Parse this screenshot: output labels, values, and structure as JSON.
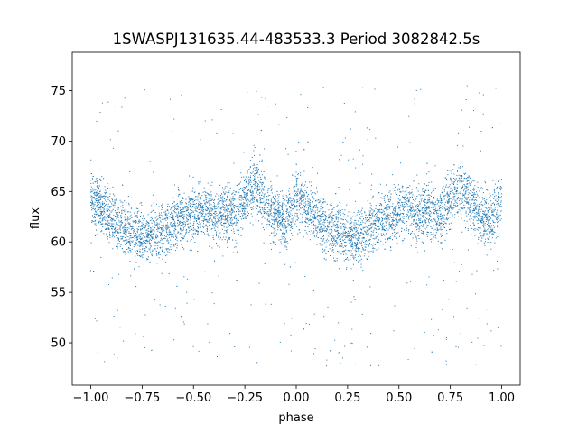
{
  "chart_data": {
    "type": "scatter",
    "title": "1SWASPJ131635.44-483533.3 Period 3082842.5s",
    "xlabel": "phase",
    "ylabel": "flux",
    "xlim": [
      -1.09,
      1.09
    ],
    "ylim": [
      45.8,
      78.8
    ],
    "xticks": [
      -1.0,
      -0.75,
      -0.5,
      -0.25,
      0.0,
      0.25,
      0.5,
      0.75,
      1.0
    ],
    "xtick_labels": [
      "−1.00",
      "−0.75",
      "−0.50",
      "−0.25",
      "0.00",
      "0.25",
      "0.50",
      "0.75",
      "1.00"
    ],
    "yticks": [
      50,
      55,
      60,
      65,
      70,
      75
    ],
    "ytick_labels": [
      "50",
      "55",
      "60",
      "65",
      "70",
      "75"
    ],
    "grid": false,
    "legend": "none",
    "marker_color": "#1f77b4",
    "series": [
      {
        "phase_profile": {
          "phase": [
            0.0,
            0.05,
            0.1,
            0.15,
            0.2,
            0.25,
            0.3,
            0.35,
            0.4,
            0.45,
            0.5,
            0.55,
            0.6,
            0.65,
            0.7,
            0.75,
            0.8,
            0.85,
            0.9,
            0.95,
            1.0
          ],
          "flux": [
            64.5,
            63.5,
            62.5,
            61.5,
            61.0,
            60.5,
            60.8,
            61.0,
            62.0,
            62.5,
            63.0,
            63.5,
            62.5,
            63.0,
            62.5,
            64.5,
            65.5,
            64.0,
            62.5,
            62.0,
            64.5
          ]
        },
        "scatter_spread": 2.6,
        "upper_envelope": 70.5,
        "lower_envelope": 47.5
      }
    ]
  }
}
